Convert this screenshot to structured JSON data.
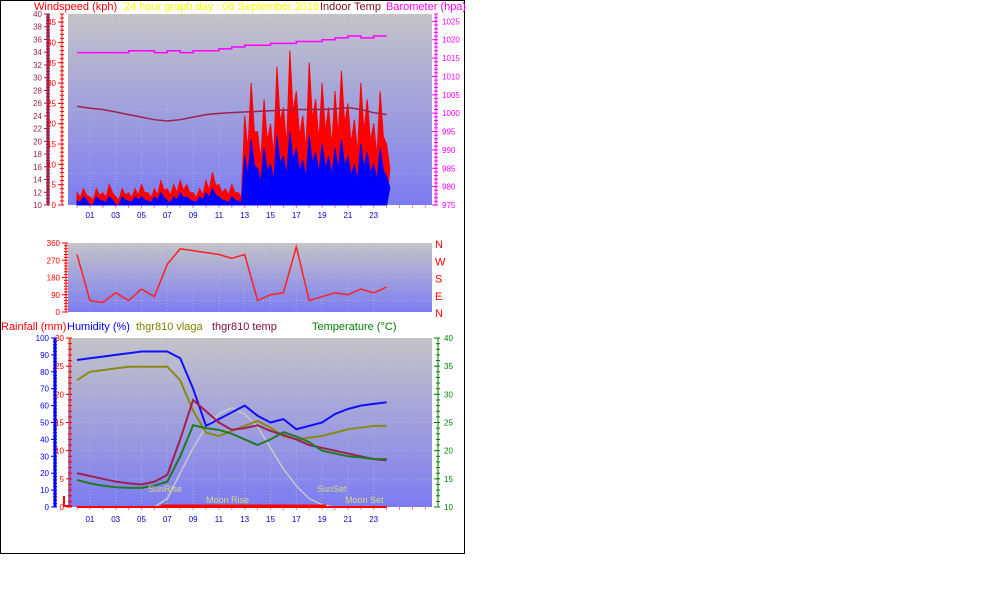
{
  "colors": {
    "gust": "#ff0000",
    "avg": "#0000ff",
    "barometer": "#ff00ff",
    "indoor": "#a0204a",
    "direction": "#ff2020",
    "humidity": "#1010ff",
    "vlaga": "#8a8a10",
    "thgr_temp": "#a02050",
    "temperature": "#207a20",
    "sun": "#c8c8c8",
    "rain": "#ff0000",
    "title": "#ffff00"
  },
  "chart_data": [
    {
      "type": "line",
      "title": "24 hour graph day : 06 September 2016",
      "overlay_label": "Indoor Temp",
      "ylabel_left": "Windspeed (kph)",
      "ylabel_right": "Barometer (hpa)",
      "xticks": [
        "01",
        "03",
        "05",
        "07",
        "09",
        "11",
        "13",
        "15",
        "17",
        "19",
        "21",
        "23"
      ],
      "indoor_axis": {
        "ylim": [
          10,
          40
        ],
        "ticks": [
          "10",
          "12",
          "14",
          "16",
          "18",
          "20",
          "22",
          "24",
          "26",
          "28",
          "30",
          "32",
          "34",
          "36",
          "38",
          "40"
        ]
      },
      "wind_axis": {
        "ylim": [
          0,
          47
        ],
        "ticks": [
          "0",
          "5",
          "10",
          "15",
          "20",
          "25",
          "30",
          "35",
          "40",
          "45"
        ]
      },
      "baro_axis": {
        "ylim": [
          975,
          1027
        ],
        "ticks": [
          "975",
          "980",
          "985",
          "990",
          "995",
          "1000",
          "1005",
          "1010",
          "1015",
          "1020",
          "1025"
        ]
      },
      "x_half_hours": "0-24 step 0.5",
      "series": [
        {
          "key": "gust",
          "values": [
            3,
            4,
            2,
            4,
            3,
            5,
            2,
            4,
            3,
            4,
            5,
            3,
            4,
            6,
            4,
            5,
            6,
            5,
            3,
            4,
            6,
            8,
            5,
            4,
            5,
            3,
            22,
            30,
            18,
            26,
            20,
            34,
            24,
            38,
            28,
            22,
            35,
            26,
            30,
            24,
            28,
            33,
            25,
            21,
            30,
            26,
            20,
            28,
            15
          ]
        },
        {
          "key": "avg",
          "values": [
            1,
            2,
            0,
            2,
            1,
            2,
            0,
            2,
            1,
            2,
            2,
            1,
            2,
            3,
            1,
            2,
            3,
            2,
            1,
            2,
            3,
            4,
            2,
            1,
            2,
            1,
            12,
            16,
            9,
            14,
            10,
            17,
            12,
            18,
            14,
            11,
            17,
            13,
            15,
            12,
            14,
            16,
            12,
            10,
            15,
            13,
            10,
            14,
            7
          ]
        },
        {
          "key": "barometer",
          "hourly": [
            1016.5,
            1016.5,
            1016.5,
            1016.5,
            1017,
            1017,
            1016.5,
            1017,
            1016.5,
            1017,
            1017,
            1017.5,
            1018,
            1018.5,
            1018.5,
            1019,
            1019,
            1019.5,
            1019.5,
            1020,
            1020.5,
            1021,
            1020.5,
            1021,
            1021
          ]
        },
        {
          "key": "indoor",
          "hourly": [
            25.5,
            25.2,
            25,
            24.6,
            24.2,
            23.8,
            23.4,
            23.2,
            23.4,
            23.8,
            24.2,
            24.4,
            24.5,
            24.6,
            24.7,
            24.8,
            24.9,
            25,
            25,
            25,
            25.1,
            25.3,
            25,
            24.5,
            24.2
          ]
        }
      ]
    },
    {
      "type": "line",
      "ylim": [
        0,
        360
      ],
      "yticks": [
        "0",
        "90",
        "180",
        "270",
        "360"
      ],
      "compass": [
        "N",
        "W",
        "S",
        "E",
        "N"
      ],
      "series": [
        {
          "key": "direction",
          "hourly": [
            300,
            60,
            50,
            100,
            60,
            120,
            80,
            250,
            330,
            320,
            310,
            300,
            280,
            300,
            60,
            90,
            100,
            340,
            60,
            80,
            100,
            90,
            120,
            100,
            130
          ]
        }
      ]
    },
    {
      "type": "line",
      "labels": {
        "rain": "Rainfall (mm)",
        "humidity": "Humidity (%)",
        "vlaga": "thgr810 vlaga",
        "thgr_temp": "thgr810 temp",
        "temperature": "Temperature (°C)"
      },
      "humidity_axis": {
        "ylim": [
          0,
          100
        ],
        "ticks": [
          "0",
          "10",
          "20",
          "30",
          "40",
          "50",
          "60",
          "70",
          "80",
          "90",
          "100"
        ]
      },
      "rain_axis": {
        "ylim": [
          0,
          30
        ],
        "ticks": [
          "0",
          "5",
          "10",
          "15",
          "20",
          "25",
          "30"
        ]
      },
      "temp_axis": {
        "ylim": [
          10,
          40
        ],
        "ticks": [
          "10",
          "15",
          "20",
          "25",
          "30",
          "35",
          "40"
        ]
      },
      "annotations": {
        "sunrise": "SunRise",
        "sunset": "SunSet",
        "moonrise": "Moon Rise",
        "moonset": "Moon Set"
      },
      "series": [
        {
          "key": "humidity",
          "hourly": [
            87,
            88,
            89,
            90,
            91,
            92,
            92,
            92,
            88,
            70,
            48,
            52,
            56,
            60,
            54,
            50,
            52,
            46,
            48,
            50,
            55,
            58,
            60,
            61,
            62
          ]
        },
        {
          "key": "vlaga",
          "hourly": [
            75,
            80,
            81,
            82,
            83,
            83,
            83,
            83,
            75,
            57,
            44,
            42,
            45,
            48,
            51,
            47,
            42,
            40,
            41,
            42,
            44,
            46,
            47,
            48,
            48
          ]
        },
        {
          "key": "thgr_temp",
          "hourly": [
            16,
            15.5,
            15,
            14.5,
            14.2,
            14,
            14.5,
            15.7,
            22,
            29,
            27,
            25,
            23.7,
            24,
            24.5,
            23.5,
            22.8,
            22,
            21,
            20.5,
            20,
            19.5,
            19,
            18.5,
            18.3
          ]
        },
        {
          "key": "temperature",
          "hourly": [
            14.8,
            14.2,
            13.8,
            13.5,
            13.4,
            13.4,
            13.8,
            14.5,
            19,
            24.5,
            24,
            23.7,
            23,
            22,
            21,
            22,
            23.3,
            22.5,
            21.5,
            20,
            19.5,
            19,
            18.8,
            18.5,
            18.5
          ]
        },
        {
          "key": "sun",
          "hourly": [
            0,
            0,
            0,
            0,
            0,
            0,
            0,
            2,
            8,
            14,
            19,
            22,
            23.5,
            22,
            19,
            14,
            9,
            5,
            2,
            0.5,
            0,
            0,
            0,
            0,
            0
          ]
        },
        {
          "key": "rain",
          "hourly": [
            0,
            0,
            0,
            0,
            0,
            0,
            0,
            0,
            0,
            0,
            0,
            0,
            0,
            0,
            0,
            0,
            0,
            0,
            0,
            0,
            0,
            0,
            0,
            0,
            0
          ]
        }
      ]
    }
  ]
}
